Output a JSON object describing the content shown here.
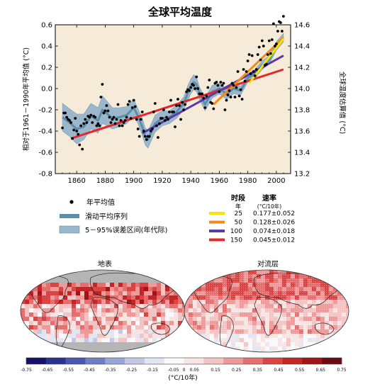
{
  "chart_data": [
    {
      "type": "line",
      "title": "全球平均温度",
      "ylabel": "相对于1961－1990年平均值 (°C)",
      "y2label": "全球温度估算值 (°C)",
      "xlim": [
        1845,
        2010
      ],
      "ylim": [
        -0.8,
        0.6
      ],
      "y2lim": [
        13.2,
        14.6
      ],
      "x_ticks": [
        1860,
        1880,
        1900,
        1920,
        1940,
        1960,
        1980,
        2000
      ],
      "x_tick_labels": [
        "1860",
        "1880",
        "1900",
        "1920",
        "1940",
        "1960",
        "1980",
        "2000"
      ],
      "y_ticks": [
        -0.8,
        -0.6,
        -0.4,
        -0.2,
        0.0,
        0.2,
        0.4,
        0.6
      ],
      "y_tick_labels": [
        "-0.8",
        "-0.6",
        "-0.4",
        "-0.2",
        "0.0",
        "0.2",
        "0.4",
        "0.6"
      ],
      "y2_ticks": [
        13.2,
        13.4,
        13.6,
        13.8,
        14.0,
        14.2,
        14.4,
        14.6
      ],
      "y2_tick_labels": [
        "13.2",
        "13.4",
        "13.6",
        "13.8",
        "14.0",
        "14.2",
        "14.4",
        "14.6"
      ],
      "annual_mean": {
        "name": "年平均值",
        "x": [
          1850,
          1851,
          1852,
          1853,
          1854,
          1855,
          1856,
          1857,
          1858,
          1859,
          1860,
          1861,
          1862,
          1863,
          1864,
          1865,
          1866,
          1867,
          1868,
          1869,
          1870,
          1871,
          1872,
          1873,
          1874,
          1875,
          1876,
          1877,
          1878,
          1879,
          1880,
          1881,
          1882,
          1883,
          1884,
          1885,
          1886,
          1887,
          1888,
          1889,
          1890,
          1891,
          1892,
          1893,
          1894,
          1895,
          1896,
          1897,
          1898,
          1899,
          1900,
          1901,
          1902,
          1903,
          1904,
          1905,
          1906,
          1907,
          1908,
          1909,
          1910,
          1911,
          1912,
          1913,
          1914,
          1915,
          1916,
          1917,
          1918,
          1919,
          1920,
          1921,
          1922,
          1923,
          1924,
          1925,
          1926,
          1927,
          1928,
          1929,
          1930,
          1931,
          1932,
          1933,
          1934,
          1935,
          1936,
          1937,
          1938,
          1939,
          1940,
          1941,
          1942,
          1943,
          1944,
          1945,
          1946,
          1947,
          1948,
          1949,
          1950,
          1951,
          1952,
          1953,
          1954,
          1955,
          1956,
          1957,
          1958,
          1959,
          1960,
          1961,
          1962,
          1963,
          1964,
          1965,
          1966,
          1967,
          1968,
          1969,
          1970,
          1971,
          1972,
          1973,
          1974,
          1975,
          1976,
          1977,
          1978,
          1979,
          1980,
          1981,
          1982,
          1983,
          1984,
          1985,
          1986,
          1987,
          1988,
          1989,
          1990,
          1991,
          1992,
          1993,
          1994,
          1995,
          1996,
          1997,
          1998,
          1999,
          2000,
          2001,
          2002,
          2003,
          2004,
          2005
        ],
        "y": [
          -0.37,
          -0.23,
          -0.23,
          -0.27,
          -0.29,
          -0.3,
          -0.32,
          -0.47,
          -0.39,
          -0.28,
          -0.4,
          -0.43,
          -0.53,
          -0.35,
          -0.57,
          -0.33,
          -0.29,
          -0.32,
          -0.26,
          -0.27,
          -0.25,
          -0.32,
          -0.26,
          -0.27,
          -0.35,
          -0.33,
          -0.35,
          -0.08,
          0.04,
          -0.23,
          -0.21,
          -0.16,
          -0.21,
          -0.27,
          -0.32,
          -0.29,
          -0.27,
          -0.33,
          -0.29,
          -0.15,
          -0.35,
          -0.3,
          -0.35,
          -0.32,
          -0.3,
          -0.27,
          -0.15,
          -0.12,
          -0.28,
          -0.18,
          -0.11,
          -0.17,
          -0.29,
          -0.38,
          -0.45,
          -0.29,
          -0.22,
          -0.4,
          -0.45,
          -0.48,
          -0.45,
          -0.45,
          -0.4,
          -0.38,
          -0.22,
          -0.14,
          -0.35,
          -0.46,
          -0.33,
          -0.28,
          -0.28,
          -0.2,
          -0.3,
          -0.27,
          -0.29,
          -0.22,
          -0.11,
          -0.22,
          -0.22,
          -0.36,
          -0.16,
          -0.1,
          -0.16,
          -0.29,
          -0.13,
          -0.2,
          -0.15,
          -0.03,
          -0.01,
          -0.02,
          0.01,
          0.04,
          0.03,
          0.0,
          0.11,
          0.0,
          -0.05,
          -0.05,
          -0.05,
          -0.09,
          -0.18,
          -0.07,
          0.01,
          0.08,
          -0.13,
          -0.14,
          -0.19,
          0.05,
          0.06,
          0.03,
          -0.03,
          0.06,
          0.03,
          0.05,
          -0.2,
          -0.11,
          -0.06,
          -0.02,
          -0.08,
          0.05,
          0.03,
          -0.08,
          0.01,
          0.16,
          -0.07,
          -0.01,
          -0.1,
          0.18,
          0.07,
          0.16,
          0.26,
          0.32,
          0.14,
          0.31,
          0.16,
          0.12,
          0.18,
          0.32,
          0.39,
          0.27,
          0.45,
          0.4,
          0.22,
          0.23,
          0.32,
          0.45,
          0.33,
          0.46,
          0.61,
          0.4,
          0.42,
          0.54,
          0.63,
          0.62,
          0.54,
          0.68
        ]
      },
      "smoothed": {
        "name": "滑动平均序列",
        "x": [
          1850,
          1855,
          1860,
          1865,
          1870,
          1875,
          1878,
          1880,
          1885,
          1890,
          1895,
          1900,
          1903,
          1906,
          1908,
          1910,
          1912,
          1915,
          1920,
          1925,
          1930,
          1935,
          1938,
          1940,
          1942,
          1944,
          1946,
          1950,
          1955,
          1960,
          1965,
          1970,
          1975,
          1980,
          1985,
          1990,
          1995,
          2000,
          2005
        ],
        "y": [
          -0.27,
          -0.32,
          -0.38,
          -0.36,
          -0.26,
          -0.3,
          -0.2,
          -0.22,
          -0.28,
          -0.27,
          -0.25,
          -0.18,
          -0.26,
          -0.36,
          -0.45,
          -0.48,
          -0.42,
          -0.33,
          -0.28,
          -0.27,
          -0.22,
          -0.14,
          -0.04,
          0.02,
          0.06,
          0.04,
          -0.04,
          -0.15,
          -0.03,
          0.0,
          -0.05,
          0.0,
          -0.02,
          0.1,
          0.14,
          0.22,
          0.27,
          0.4,
          0.48
        ]
      },
      "uncertainty": {
        "name": "5－95%误差区间(年代际)",
        "lower": [
          -0.4,
          -0.45,
          -0.52,
          -0.48,
          -0.38,
          -0.42,
          -0.33,
          -0.34,
          -0.38,
          -0.36,
          -0.33,
          -0.26,
          -0.33,
          -0.44,
          -0.53,
          -0.56,
          -0.5,
          -0.41,
          -0.35,
          -0.33,
          -0.28,
          -0.2,
          -0.11,
          -0.05,
          -0.01,
          -0.03,
          -0.1,
          -0.21,
          -0.09,
          -0.05,
          -0.1,
          -0.05,
          -0.06,
          0.06,
          0.1,
          0.18,
          0.23,
          0.36,
          0.44
        ],
        "upper": [
          -0.14,
          -0.19,
          -0.24,
          -0.24,
          -0.14,
          -0.18,
          -0.07,
          -0.1,
          -0.18,
          -0.18,
          -0.17,
          -0.1,
          -0.19,
          -0.28,
          -0.37,
          -0.4,
          -0.34,
          -0.25,
          -0.21,
          -0.21,
          -0.16,
          -0.08,
          0.03,
          0.09,
          0.13,
          0.11,
          0.02,
          -0.09,
          0.03,
          0.05,
          0.0,
          0.05,
          0.02,
          0.14,
          0.18,
          0.26,
          0.31,
          0.44,
          0.52
        ]
      },
      "trends_header": {
        "period": "时段",
        "period_unit": "年",
        "rate": "速率",
        "rate_unit": "(°C/10年)"
      },
      "trends": [
        {
          "period": "25",
          "rate": "0.177±0.052",
          "color": "#f5e600",
          "x": [
            1981,
            2005
          ],
          "y": [
            0.05,
            0.47
          ]
        },
        {
          "period": "50",
          "rate": "0.128±0.026",
          "color": "#f08a1c",
          "x": [
            1956,
            2005
          ],
          "y": [
            -0.15,
            0.48
          ]
        },
        {
          "period": "100",
          "rate": "0.074±0.018",
          "color": "#5b3aa8",
          "x": [
            1906,
            2005
          ],
          "y": [
            -0.42,
            0.31
          ]
        },
        {
          "period": "150",
          "rate": "0.045±0.012",
          "color": "#e8262a",
          "x": [
            1856,
            2005
          ],
          "y": [
            -0.47,
            0.18
          ]
        }
      ],
      "legend": [
        {
          "label": "年平均值",
          "kind": "dot"
        },
        {
          "label": "滑动平均序列",
          "kind": "line"
        },
        {
          "label": "5－95%误差区间(年代际)",
          "kind": "band"
        }
      ],
      "colors": {
        "plot_bg": "#f6ebd9",
        "band": "#9ab7cb",
        "smooth": "#5f8ca8"
      },
      "grid": false
    },
    {
      "type": "heatmap",
      "titles": [
        "地表",
        "对流层"
      ],
      "projection": "Robinson",
      "colorbar": {
        "ticks": [
          "-0.75",
          "-0.65",
          "-0.55",
          "-0.45",
          "-0.35",
          "-0.25",
          "-0.15",
          "-0.05",
          "0",
          "0.05",
          "0.15",
          "0.25",
          "0.35",
          "0.45",
          "0.55",
          "0.65",
          "0.75"
        ],
        "unit": "(°C/10年)",
        "colors": [
          "#14126a",
          "#2c3194",
          "#4a57b0",
          "#6f7fc6",
          "#9ba6d8",
          "#c2c9e8",
          "#e2e5f4",
          "#f9f9fb",
          "#f9e4e4",
          "#f4c4c4",
          "#ee9a9a",
          "#e56f6f",
          "#d94545",
          "#c22626",
          "#a0141a",
          "#6c0c12"
        ]
      },
      "no_data_color": "#b5b5b5"
    }
  ]
}
